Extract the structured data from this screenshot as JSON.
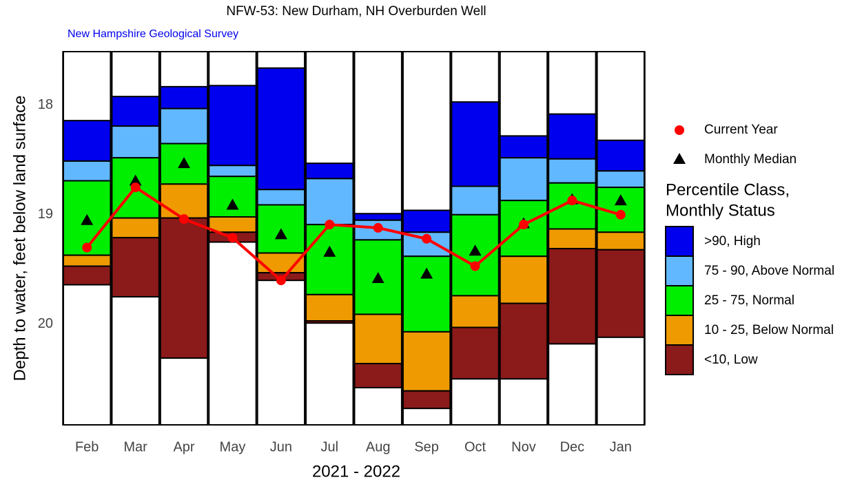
{
  "chart_data": {
    "type": "percentile",
    "title": "NFW-53: New Durham, NH Overburden Well",
    "subtitle": "New Hampshire Geological Survey",
    "x_label": "2021 - 2022",
    "y_label": "Depth to water, feet below land surface",
    "categories": [
      "Feb",
      "Mar",
      "Apr",
      "May",
      "Jun",
      "Jul",
      "Aug",
      "Sep",
      "Oct",
      "Nov",
      "Dec",
      "Jan"
    ],
    "ylim": [
      17.51,
      20.92
    ],
    "yticks": [
      18,
      19,
      20
    ],
    "y_inverted": true,
    "legend_title": [
      "Percentile Class,",
      "Monthly Status"
    ],
    "classes": [
      {
        "name": ">90, High",
        "color": "#0000ee"
      },
      {
        "name": "75 - 90, Above Normal",
        "color": "#62b8ff"
      },
      {
        "name": "25 - 75, Normal",
        "color": "#00ee00"
      },
      {
        "name": "10 - 25, Below Normal",
        "color": "#ee9a00"
      },
      {
        "name": "<10, Low",
        "color": "#8b1a1a"
      }
    ],
    "boundaries": [
      [
        18.14,
        18.51,
        18.69,
        19.37,
        19.47,
        19.64
      ],
      [
        17.92,
        18.19,
        18.48,
        19.03,
        19.21,
        19.75
      ],
      [
        17.83,
        18.03,
        18.35,
        18.72,
        19.03,
        20.31
      ],
      [
        17.82,
        18.55,
        18.65,
        19.02,
        19.16,
        19.25
      ],
      [
        17.66,
        18.77,
        18.91,
        19.35,
        19.53,
        19.6
      ],
      [
        18.53,
        18.67,
        19.09,
        19.73,
        19.97,
        19.99
      ],
      [
        18.99,
        19.05,
        19.23,
        19.91,
        20.36,
        20.58
      ],
      [
        18.96,
        19.16,
        19.38,
        20.07,
        20.61,
        20.77
      ],
      [
        17.97,
        18.74,
        19.0,
        19.74,
        20.03,
        20.5
      ],
      [
        18.28,
        18.48,
        18.87,
        19.38,
        19.81,
        20.5
      ],
      [
        18.08,
        18.49,
        18.71,
        19.13,
        19.31,
        20.18
      ],
      [
        18.32,
        18.6,
        18.75,
        19.16,
        19.32,
        20.12
      ]
    ],
    "series": [
      {
        "name": "Current Year",
        "color": "#ff0000",
        "values": [
          19.3,
          18.75,
          19.04,
          19.21,
          19.6,
          19.09,
          19.12,
          19.22,
          19.47,
          19.09,
          18.87,
          19.0
        ]
      },
      {
        "name": "Monthly Median",
        "color": "#000000",
        "values": [
          19.05,
          18.69,
          18.53,
          18.91,
          19.18,
          19.34,
          19.58,
          19.54,
          19.33,
          19.08,
          18.86,
          18.87
        ]
      }
    ]
  }
}
